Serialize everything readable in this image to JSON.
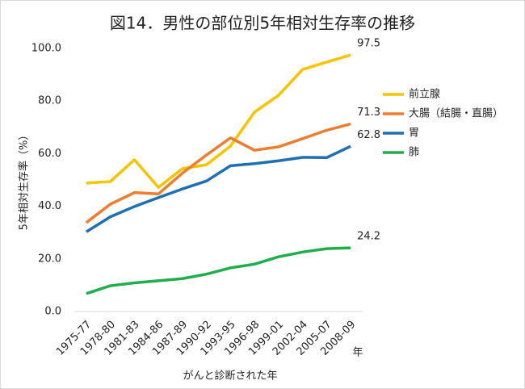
{
  "chart_data": {
    "type": "line",
    "title": "図14．男性の部位別5年相対生存率の推移",
    "y_label": "5年相対生存率（%）",
    "x_label": "がんと診断された年",
    "x_unit": "年",
    "categories": [
      "1975-77",
      "1978-80",
      "1981-83",
      "1984-86",
      "1987-89",
      "1990-92",
      "1993-95",
      "1996-98",
      "1999-01",
      "2002-04",
      "2005-07",
      "2008-09"
    ],
    "series": [
      {
        "name": "前立腺",
        "color": "#f9c300",
        "values": [
          48.8,
          49.4,
          57.7,
          47.2,
          54.3,
          55.8,
          62.9,
          75.8,
          82.2,
          92.0,
          94.8,
          97.5
        ]
      },
      {
        "name": "大腸（結腸・直腸）",
        "color": "#ed7d31",
        "values": [
          33.8,
          40.8,
          45.2,
          44.7,
          52.6,
          59.5,
          66.0,
          61.3,
          62.6,
          65.7,
          68.9,
          71.3
        ]
      },
      {
        "name": "胃",
        "color": "#1f6fb5",
        "values": [
          30.3,
          36.0,
          39.9,
          43.3,
          46.6,
          49.6,
          55.4,
          56.2,
          57.3,
          58.6,
          58.5,
          62.8
        ]
      },
      {
        "name": "肺",
        "color": "#1fae4b",
        "values": [
          6.8,
          9.8,
          10.9,
          11.7,
          12.5,
          14.2,
          16.6,
          18.0,
          20.8,
          22.6,
          23.9,
          24.2
        ]
      }
    ],
    "ylim": [
      0,
      100
    ],
    "yticks": [
      {
        "value": 0,
        "label": "0.0"
      },
      {
        "value": 20,
        "label": "20.0"
      },
      {
        "value": 40,
        "label": "40.0"
      },
      {
        "value": 60,
        "label": "60.0"
      },
      {
        "value": 80,
        "label": "80.0"
      },
      {
        "value": 100,
        "label": "100.0"
      }
    ],
    "grid": false,
    "legend": "right"
  }
}
